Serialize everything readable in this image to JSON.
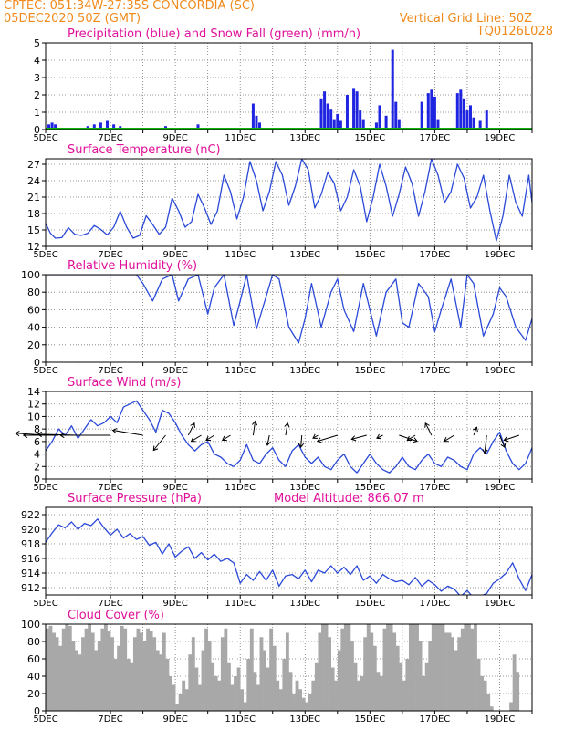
{
  "header": {
    "line1": "CPTEC:   051:34W-27:35S   CONCORDIA (SC)",
    "line2": "05DEC2020 50Z (GMT)",
    "grid_note": "Vertical Grid Line: 50Z",
    "code": "TQ0126L028"
  },
  "colors": {
    "header": "#f08a1c",
    "title": "#e0109a",
    "precip": "#1f24e0",
    "snow": "#10b010",
    "line": "#2a49d8",
    "cloud": "#a8a8a8",
    "wind_arrow": "#000000"
  },
  "chart_data": [
    {
      "id": "precip",
      "type": "bar",
      "title": "Precipitation (blue) and Snow Fall (green) (mm/h)",
      "x_ticks": [
        "5DEC",
        "7DEC",
        "9DEC",
        "11DEC",
        "13DEC",
        "15DEC",
        "17DEC",
        "19DEC"
      ],
      "ylim": [
        0,
        5
      ],
      "y_ticks": [
        "0",
        "1",
        "2",
        "3",
        "4",
        "5"
      ],
      "grid": true,
      "x": [
        5.1,
        5.2,
        5.3,
        5.5,
        6.3,
        6.5,
        6.7,
        6.9,
        7.1,
        7.3,
        8.7,
        9.7,
        11.4,
        11.5,
        11.6,
        13.5,
        13.6,
        13.7,
        13.8,
        13.9,
        14.0,
        14.1,
        14.3,
        14.5,
        14.6,
        14.7,
        14.8,
        15.2,
        15.3,
        15.5,
        15.7,
        15.8,
        15.9,
        16.6,
        16.8,
        16.9,
        17.0,
        17.1,
        17.7,
        17.8,
        17.9,
        18.0,
        18.1,
        18.2,
        18.4,
        18.6
      ],
      "values": [
        0.3,
        0.4,
        0.3,
        0.1,
        0.2,
        0.3,
        0.4,
        0.5,
        0.3,
        0.2,
        0.2,
        0.3,
        1.5,
        0.8,
        0.4,
        1.8,
        2.2,
        1.5,
        1.2,
        0.6,
        0.9,
        0.5,
        2.0,
        2.4,
        2.2,
        1.1,
        0.6,
        0.4,
        1.4,
        0.8,
        4.6,
        1.6,
        0.6,
        1.6,
        2.1,
        2.3,
        1.9,
        0.6,
        2.1,
        2.3,
        1.8,
        1.1,
        1.4,
        0.7,
        0.5,
        1.1
      ],
      "snow_values": [
        0
      ]
    },
    {
      "id": "temp",
      "type": "line",
      "title": "Surface Temperature (nC)",
      "x_ticks": [
        "5DEC",
        "7DEC",
        "9DEC",
        "11DEC",
        "13DEC",
        "15DEC",
        "17DEC",
        "19DEC"
      ],
      "ylim": [
        12,
        28
      ],
      "y_ticks": [
        "12",
        "15",
        "18",
        "21",
        "24",
        "27"
      ],
      "grid": true,
      "x": [
        5.0,
        5.15,
        5.3,
        5.5,
        5.7,
        5.9,
        6.1,
        6.3,
        6.5,
        6.7,
        6.9,
        7.1,
        7.3,
        7.5,
        7.7,
        7.9,
        8.1,
        8.3,
        8.5,
        8.7,
        8.9,
        9.1,
        9.3,
        9.5,
        9.7,
        9.9,
        10.1,
        10.3,
        10.5,
        10.7,
        10.9,
        11.1,
        11.3,
        11.5,
        11.7,
        11.9,
        12.1,
        12.3,
        12.5,
        12.7,
        12.9,
        13.1,
        13.3,
        13.5,
        13.7,
        13.9,
        14.1,
        14.3,
        14.5,
        14.7,
        14.9,
        15.1,
        15.3,
        15.5,
        15.7,
        15.9,
        16.1,
        16.3,
        16.5,
        16.7,
        16.9,
        17.1,
        17.3,
        17.5,
        17.7,
        17.9,
        18.1,
        18.3,
        18.5,
        18.7,
        18.9,
        19.1,
        19.3,
        19.5,
        19.7,
        19.9,
        20.0
      ],
      "values": [
        16.2,
        14.4,
        13.5,
        13.6,
        15.4,
        14.2,
        14.0,
        14.4,
        15.8,
        15.1,
        14.1,
        15.5,
        18.4,
        15.5,
        13.5,
        14.0,
        17.6,
        16.0,
        14.2,
        15.5,
        20.8,
        18.5,
        15.5,
        16.5,
        21.5,
        19.0,
        16.0,
        18.5,
        25.0,
        22.0,
        17.0,
        21.0,
        27.5,
        24.0,
        18.5,
        22.0,
        27.5,
        25.0,
        19.5,
        23.0,
        28.0,
        26.0,
        19.0,
        21.5,
        25.5,
        23.5,
        18.5,
        21.0,
        26.0,
        23.0,
        16.5,
        21.0,
        27.0,
        23.0,
        17.5,
        21.5,
        26.5,
        23.5,
        17.5,
        22.0,
        28.0,
        25.0,
        20.0,
        22.0,
        27.0,
        24.5,
        19.0,
        21.0,
        25.0,
        18.5,
        13.0,
        17.5,
        25.0,
        20.0,
        17.5,
        25.0,
        20.0
      ]
    },
    {
      "id": "rh",
      "type": "line",
      "title": "Relative Humidity (%)",
      "x_ticks": [
        "5DEC",
        "7DEC",
        "9DEC",
        "11DEC",
        "13DEC",
        "15DEC",
        "17DEC",
        "19DEC"
      ],
      "ylim": [
        0,
        100
      ],
      "y_ticks": [
        "0",
        "20",
        "40",
        "60",
        "80",
        "100"
      ],
      "grid": true,
      "x": [
        5.0,
        5.4,
        5.8,
        6.2,
        6.6,
        7.0,
        7.4,
        7.8,
        8.0,
        8.3,
        8.6,
        8.9,
        9.1,
        9.4,
        9.7,
        10.0,
        10.2,
        10.5,
        10.8,
        11.0,
        11.2,
        11.5,
        11.8,
        12.0,
        12.2,
        12.5,
        12.8,
        13.0,
        13.2,
        13.5,
        13.8,
        14.0,
        14.2,
        14.5,
        14.8,
        15.0,
        15.2,
        15.5,
        15.8,
        16.0,
        16.2,
        16.5,
        16.8,
        17.0,
        17.2,
        17.5,
        17.8,
        18.0,
        18.2,
        18.5,
        18.8,
        19.0,
        19.2,
        19.5,
        19.8,
        20.0
      ],
      "values": [
        100,
        100,
        100,
        100,
        100,
        100,
        100,
        100,
        90,
        70,
        95,
        100,
        70,
        95,
        100,
        55,
        85,
        100,
        42,
        70,
        100,
        38,
        75,
        100,
        95,
        40,
        22,
        50,
        90,
        40,
        80,
        95,
        60,
        35,
        90,
        60,
        30,
        80,
        95,
        45,
        40,
        90,
        75,
        35,
        60,
        95,
        40,
        100,
        90,
        30,
        55,
        85,
        75,
        40,
        25,
        50
      ]
    },
    {
      "id": "wind",
      "type": "line",
      "title": "Surface Wind (m/s)",
      "x_ticks": [
        "5DEC",
        "7DEC",
        "9DEC",
        "11DEC",
        "13DEC",
        "15DEC",
        "17DEC",
        "19DEC"
      ],
      "ylim": [
        0,
        14
      ],
      "y_ticks": [
        "0",
        "2",
        "4",
        "6",
        "8",
        "10",
        "12",
        "14"
      ],
      "grid": true,
      "x": [
        5.0,
        5.2,
        5.4,
        5.6,
        5.8,
        6.0,
        6.2,
        6.4,
        6.6,
        6.8,
        7.0,
        7.2,
        7.4,
        7.6,
        7.8,
        8.0,
        8.2,
        8.4,
        8.6,
        8.8,
        9.0,
        9.2,
        9.4,
        9.6,
        9.8,
        10.0,
        10.2,
        10.4,
        10.6,
        10.8,
        11.0,
        11.2,
        11.4,
        11.6,
        11.8,
        12.0,
        12.2,
        12.4,
        12.6,
        12.8,
        13.0,
        13.2,
        13.4,
        13.6,
        13.8,
        14.0,
        14.2,
        14.4,
        14.6,
        14.8,
        15.0,
        15.2,
        15.4,
        15.6,
        15.8,
        16.0,
        16.2,
        16.4,
        16.6,
        16.8,
        17.0,
        17.2,
        17.4,
        17.6,
        17.8,
        18.0,
        18.2,
        18.4,
        18.6,
        18.8,
        19.0,
        19.2,
        19.4,
        19.6,
        19.8,
        20.0
      ],
      "values": [
        4.5,
        6.0,
        8.0,
        7.0,
        8.5,
        6.5,
        8.0,
        9.5,
        8.5,
        9.0,
        10.0,
        9.0,
        11.5,
        12.0,
        12.5,
        11.0,
        9.5,
        7.5,
        11.0,
        10.5,
        9.0,
        7.0,
        5.5,
        4.5,
        5.5,
        6.0,
        4.0,
        3.5,
        2.5,
        2.0,
        3.0,
        5.5,
        3.0,
        2.5,
        4.0,
        5.0,
        3.0,
        2.0,
        4.5,
        5.5,
        3.5,
        2.5,
        3.5,
        2.0,
        1.5,
        3.0,
        4.0,
        2.0,
        1.0,
        2.5,
        4.0,
        2.5,
        1.5,
        1.0,
        2.0,
        3.5,
        2.0,
        1.5,
        3.0,
        4.0,
        2.5,
        2.0,
        3.5,
        3.0,
        2.0,
        1.5,
        4.0,
        5.0,
        4.0,
        6.0,
        7.5,
        4.5,
        2.5,
        1.5,
        2.5,
        5.0
      ],
      "vectors": [
        {
          "x": 5.0,
          "u": 3.0,
          "v": -0.2
        },
        {
          "x": 5.4,
          "u": 3.5,
          "v": 0.0
        },
        {
          "x": 6.0,
          "u": 4.0,
          "v": -0.1
        },
        {
          "x": 7.0,
          "u": 5.0,
          "v": 0.0
        },
        {
          "x": 8.0,
          "u": 3.0,
          "v": -0.5
        },
        {
          "x": 8.7,
          "u": 1.2,
          "v": 1.5
        },
        {
          "x": 9.4,
          "u": -0.6,
          "v": -1.2
        },
        {
          "x": 9.8,
          "u": 1.0,
          "v": 0.6
        },
        {
          "x": 10.2,
          "u": 0.8,
          "v": 0.5
        },
        {
          "x": 10.7,
          "u": 0.8,
          "v": 0.5
        },
        {
          "x": 11.4,
          "u": -0.2,
          "v": -1.4
        },
        {
          "x": 11.9,
          "u": 0.2,
          "v": 1.0
        },
        {
          "x": 12.4,
          "u": -0.2,
          "v": -1.2
        },
        {
          "x": 12.9,
          "u": 0.1,
          "v": 1.2
        },
        {
          "x": 13.4,
          "u": 0.5,
          "v": 0.3
        },
        {
          "x": 14.0,
          "u": 2.0,
          "v": 0.6
        },
        {
          "x": 14.9,
          "u": 1.5,
          "v": 0.4
        },
        {
          "x": 15.4,
          "u": 0.6,
          "v": 0.3
        },
        {
          "x": 15.9,
          "u": -1.8,
          "v": 0.6
        },
        {
          "x": 16.4,
          "u": 0.8,
          "v": 0.5
        },
        {
          "x": 16.9,
          "u": 0.6,
          "v": -1.2
        },
        {
          "x": 17.6,
          "u": 1.0,
          "v": 0.6
        },
        {
          "x": 18.2,
          "u": -0.3,
          "v": -0.8
        },
        {
          "x": 18.6,
          "u": 0.2,
          "v": 1.8
        },
        {
          "x": 19.0,
          "u": -0.5,
          "v": 1.2
        },
        {
          "x": 19.6,
          "u": 1.5,
          "v": 0.5
        }
      ]
    },
    {
      "id": "pres",
      "type": "line",
      "title": "Surface Pressure (hPa)",
      "annotation": "Model Altitude: 866.07  m",
      "x_ticks": [
        "5DEC",
        "7DEC",
        "9DEC",
        "11DEC",
        "13DEC",
        "15DEC",
        "17DEC",
        "19DEC"
      ],
      "ylim": [
        911,
        923
      ],
      "y_ticks": [
        "912",
        "914",
        "916",
        "918",
        "920",
        "922"
      ],
      "grid": true,
      "x": [
        5.0,
        5.2,
        5.4,
        5.6,
        5.8,
        6.0,
        6.2,
        6.4,
        6.6,
        6.8,
        7.0,
        7.2,
        7.4,
        7.6,
        7.8,
        8.0,
        8.2,
        8.4,
        8.6,
        8.8,
        9.0,
        9.2,
        9.4,
        9.6,
        9.8,
        10.0,
        10.2,
        10.4,
        10.6,
        10.8,
        11.0,
        11.2,
        11.4,
        11.6,
        11.8,
        12.0,
        12.2,
        12.4,
        12.6,
        12.8,
        13.0,
        13.2,
        13.4,
        13.6,
        13.8,
        14.0,
        14.2,
        14.4,
        14.6,
        14.8,
        15.0,
        15.2,
        15.4,
        15.6,
        15.8,
        16.0,
        16.2,
        16.4,
        16.6,
        16.8,
        17.0,
        17.2,
        17.4,
        17.6,
        17.8,
        18.0,
        18.2,
        18.4,
        18.6,
        18.8,
        19.0,
        19.2,
        19.4,
        19.6,
        19.8,
        20.0
      ],
      "values": [
        918.2,
        919.5,
        920.6,
        920.2,
        921.0,
        920.0,
        920.8,
        920.5,
        921.4,
        920.2,
        919.2,
        920.0,
        918.8,
        919.4,
        918.6,
        919.0,
        917.8,
        918.2,
        916.6,
        918.0,
        916.2,
        917.0,
        917.6,
        916.0,
        916.8,
        915.8,
        916.6,
        915.6,
        916.0,
        915.4,
        912.6,
        913.8,
        913.0,
        914.2,
        913.0,
        914.4,
        912.2,
        913.6,
        913.8,
        913.2,
        914.4,
        912.8,
        914.4,
        914.0,
        915.0,
        914.0,
        914.8,
        913.8,
        915.0,
        913.0,
        913.6,
        912.6,
        913.8,
        913.2,
        912.8,
        913.0,
        912.4,
        913.4,
        912.2,
        913.0,
        912.4,
        911.5,
        912.2,
        911.8,
        910.8,
        911.6,
        910.6,
        910.8,
        911.2,
        912.6,
        913.2,
        914.0,
        915.4,
        913.2,
        911.6,
        913.8
      ]
    },
    {
      "id": "cloud",
      "type": "area",
      "title": "Cloud Cover (%)",
      "x_ticks": [
        "5DEC",
        "7DEC",
        "9DEC",
        "11DEC",
        "13DEC",
        "15DEC",
        "17DEC",
        "19DEC"
      ],
      "ylim": [
        0,
        100
      ],
      "y_ticks": [
        "0",
        "20",
        "40",
        "60",
        "80",
        "100"
      ],
      "grid": true,
      "x": [
        5.0,
        5.1,
        5.2,
        5.3,
        5.4,
        5.5,
        5.6,
        5.7,
        5.8,
        5.9,
        6.0,
        6.1,
        6.2,
        6.3,
        6.4,
        6.5,
        6.6,
        6.7,
        6.8,
        6.9,
        7.0,
        7.1,
        7.2,
        7.3,
        7.4,
        7.5,
        7.6,
        7.7,
        7.8,
        7.9,
        8.0,
        8.1,
        8.2,
        8.3,
        8.4,
        8.5,
        8.6,
        8.7,
        8.8,
        8.9,
        9.0,
        9.1,
        9.2,
        9.3,
        9.4,
        9.5,
        9.6,
        9.7,
        9.8,
        9.9,
        10.0,
        10.1,
        10.2,
        10.3,
        10.4,
        10.5,
        10.6,
        10.7,
        10.8,
        10.9,
        11.0,
        11.1,
        11.2,
        11.3,
        11.4,
        11.5,
        11.6,
        11.7,
        11.8,
        11.9,
        12.0,
        12.1,
        12.2,
        12.3,
        12.4,
        12.5,
        12.6,
        12.7,
        12.8,
        12.9,
        13.0,
        13.1,
        13.2,
        13.3,
        13.4,
        13.5,
        13.6,
        13.7,
        13.8,
        13.9,
        14.0,
        14.1,
        14.2,
        14.3,
        14.4,
        14.5,
        14.6,
        14.7,
        14.8,
        14.9,
        15.0,
        15.1,
        15.2,
        15.3,
        15.4,
        15.5,
        15.6,
        15.7,
        15.8,
        15.9,
        16.0,
        16.1,
        16.2,
        16.3,
        16.4,
        16.5,
        16.6,
        16.7,
        16.8,
        16.9,
        17.0,
        17.1,
        17.2,
        17.3,
        17.4,
        17.5,
        17.6,
        17.7,
        17.8,
        17.9,
        18.0,
        18.1,
        18.2,
        18.3,
        18.4,
        18.5,
        18.6,
        18.7,
        18.8,
        18.9,
        19.0,
        19.1,
        19.2,
        19.3,
        19.4,
        19.5,
        19.6,
        19.7,
        19.8,
        19.9,
        20.0
      ],
      "values": [
        95,
        98,
        90,
        85,
        75,
        95,
        100,
        98,
        80,
        70,
        65,
        85,
        95,
        100,
        90,
        70,
        80,
        95,
        100,
        92,
        85,
        60,
        75,
        98,
        95,
        60,
        55,
        85,
        95,
        90,
        80,
        95,
        92,
        85,
        70,
        65,
        90,
        60,
        40,
        30,
        8,
        20,
        35,
        25,
        65,
        85,
        50,
        30,
        70,
        95,
        80,
        55,
        40,
        35,
        85,
        95,
        55,
        30,
        40,
        50,
        25,
        10,
        60,
        95,
        45,
        30,
        85,
        70,
        50,
        95,
        75,
        35,
        25,
        60,
        90,
        45,
        20,
        35,
        25,
        15,
        10,
        20,
        35,
        55,
        90,
        100,
        100,
        85,
        50,
        35,
        70,
        95,
        100,
        100,
        80,
        55,
        35,
        40,
        85,
        100,
        90,
        75,
        45,
        40,
        95,
        100,
        100,
        90,
        75,
        55,
        35,
        60,
        100,
        100,
        100,
        80,
        40,
        55,
        80,
        100,
        100,
        100,
        100,
        90,
        90,
        85,
        70,
        85,
        95,
        100,
        100,
        95,
        100,
        60,
        40,
        35,
        20,
        5,
        0,
        0,
        0,
        0,
        0,
        10,
        65,
        45,
        0,
        0,
        0,
        0,
        0
      ]
    }
  ]
}
